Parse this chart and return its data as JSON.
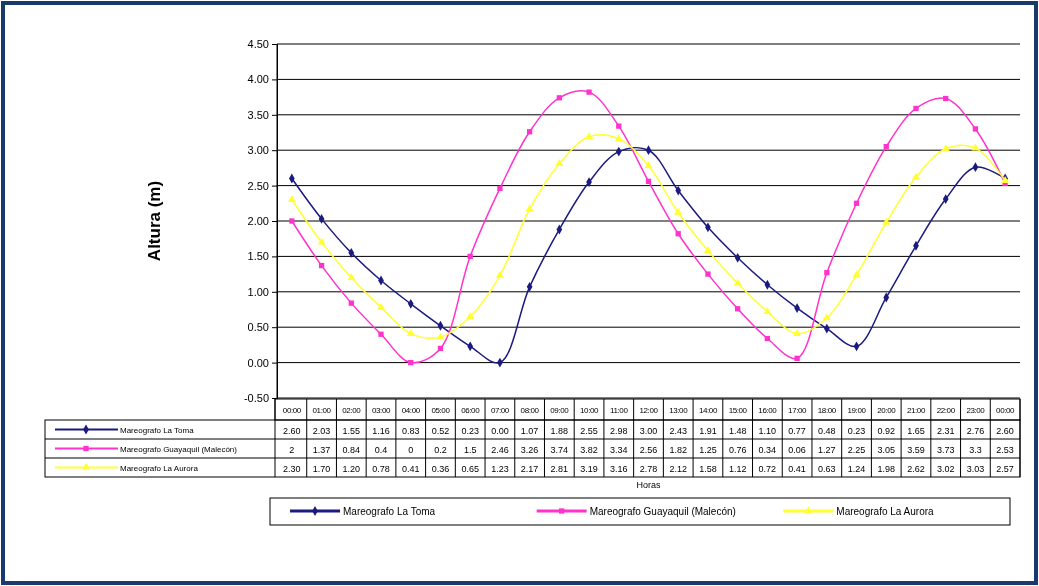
{
  "chart_data": {
    "type": "line",
    "ylabel": "Altura (m)",
    "annotations": [
      "Horas"
    ],
    "categories": [
      "00:00",
      "01:00",
      "02:00",
      "03:00",
      "04:00",
      "05:00",
      "06:00",
      "07:00",
      "08:00",
      "09:00",
      "10:00",
      "11:00",
      "12:00",
      "13:00",
      "14:00",
      "15:00",
      "16:00",
      "17:00",
      "18:00",
      "19:00",
      "20:00",
      "21:00",
      "22:00",
      "23:00",
      "00:00"
    ],
    "ylim": [
      -0.5,
      4.5
    ],
    "yticks": [
      {
        "value": -0.5,
        "label": "-0.50"
      },
      {
        "value": 0,
        "label": "0.00"
      },
      {
        "value": 0.5,
        "label": "0.50"
      },
      {
        "value": 1,
        "label": "1.00"
      },
      {
        "value": 1.5,
        "label": "1.50"
      },
      {
        "value": 2,
        "label": "2.00"
      },
      {
        "value": 2.5,
        "label": "2.50"
      },
      {
        "value": 3,
        "label": "3.00"
      },
      {
        "value": 3.5,
        "label": "3.50"
      },
      {
        "value": 4,
        "label": "4.00"
      },
      {
        "value": 4.5,
        "label": "4.50"
      }
    ],
    "grid": "y",
    "legend": "bottom",
    "series": [
      {
        "name": "Mareografo La Toma",
        "color": "#1a1a80",
        "marker": "diamond",
        "values": [
          2.6,
          2.03,
          1.55,
          1.16,
          0.83,
          0.52,
          0.23,
          0.0,
          1.07,
          1.88,
          2.55,
          2.98,
          3.0,
          2.43,
          1.91,
          1.48,
          1.1,
          0.77,
          0.48,
          0.23,
          0.92,
          1.65,
          2.31,
          2.76,
          2.6
        ],
        "value_labels": [
          "2.60",
          "2.03",
          "1.55",
          "1.16",
          "0.83",
          "0.52",
          "0.23",
          "0.00",
          "1.07",
          "1.88",
          "2.55",
          "2.98",
          "3.00",
          "2.43",
          "1.91",
          "1.48",
          "1.10",
          "0.77",
          "0.48",
          "0.23",
          "0.92",
          "1.65",
          "2.31",
          "2.76",
          "2.60"
        ]
      },
      {
        "name": "Mareografo Guayaquil (Malecón)",
        "color": "#ff33cc",
        "marker": "square",
        "values": [
          2,
          1.37,
          0.84,
          0.4,
          0,
          0.2,
          1.5,
          2.46,
          3.26,
          3.74,
          3.82,
          3.34,
          2.56,
          1.82,
          1.25,
          0.76,
          0.34,
          0.06,
          1.27,
          2.25,
          3.05,
          3.59,
          3.73,
          3.3,
          2.53
        ],
        "value_labels": [
          "2",
          "1.37",
          "0.84",
          "0.4",
          "0",
          "0.2",
          "1.5",
          "2.46",
          "3.26",
          "3.74",
          "3.82",
          "3.34",
          "2.56",
          "1.82",
          "1.25",
          "0.76",
          "0.34",
          "0.06",
          "1.27",
          "2.25",
          "3.05",
          "3.59",
          "3.73",
          "3.3",
          "2.53"
        ]
      },
      {
        "name": "Mareografo La Aurora",
        "color": "#ffff33",
        "marker": "triangle",
        "values": [
          2.3,
          1.7,
          1.2,
          0.78,
          0.41,
          0.36,
          0.65,
          1.23,
          2.17,
          2.81,
          3.19,
          3.16,
          2.78,
          2.12,
          1.58,
          1.12,
          0.72,
          0.41,
          0.63,
          1.24,
          1.98,
          2.62,
          3.02,
          3.03,
          2.57
        ],
        "value_labels": [
          "2.30",
          "1.70",
          "1.20",
          "0.78",
          "0.41",
          "0.36",
          "0.65",
          "1.23",
          "2.17",
          "2.81",
          "3.19",
          "3.16",
          "2.78",
          "2.12",
          "1.58",
          "1.12",
          "0.72",
          "0.41",
          "0.63",
          "1.24",
          "1.98",
          "2.62",
          "3.02",
          "3.03",
          "2.57"
        ]
      }
    ]
  }
}
